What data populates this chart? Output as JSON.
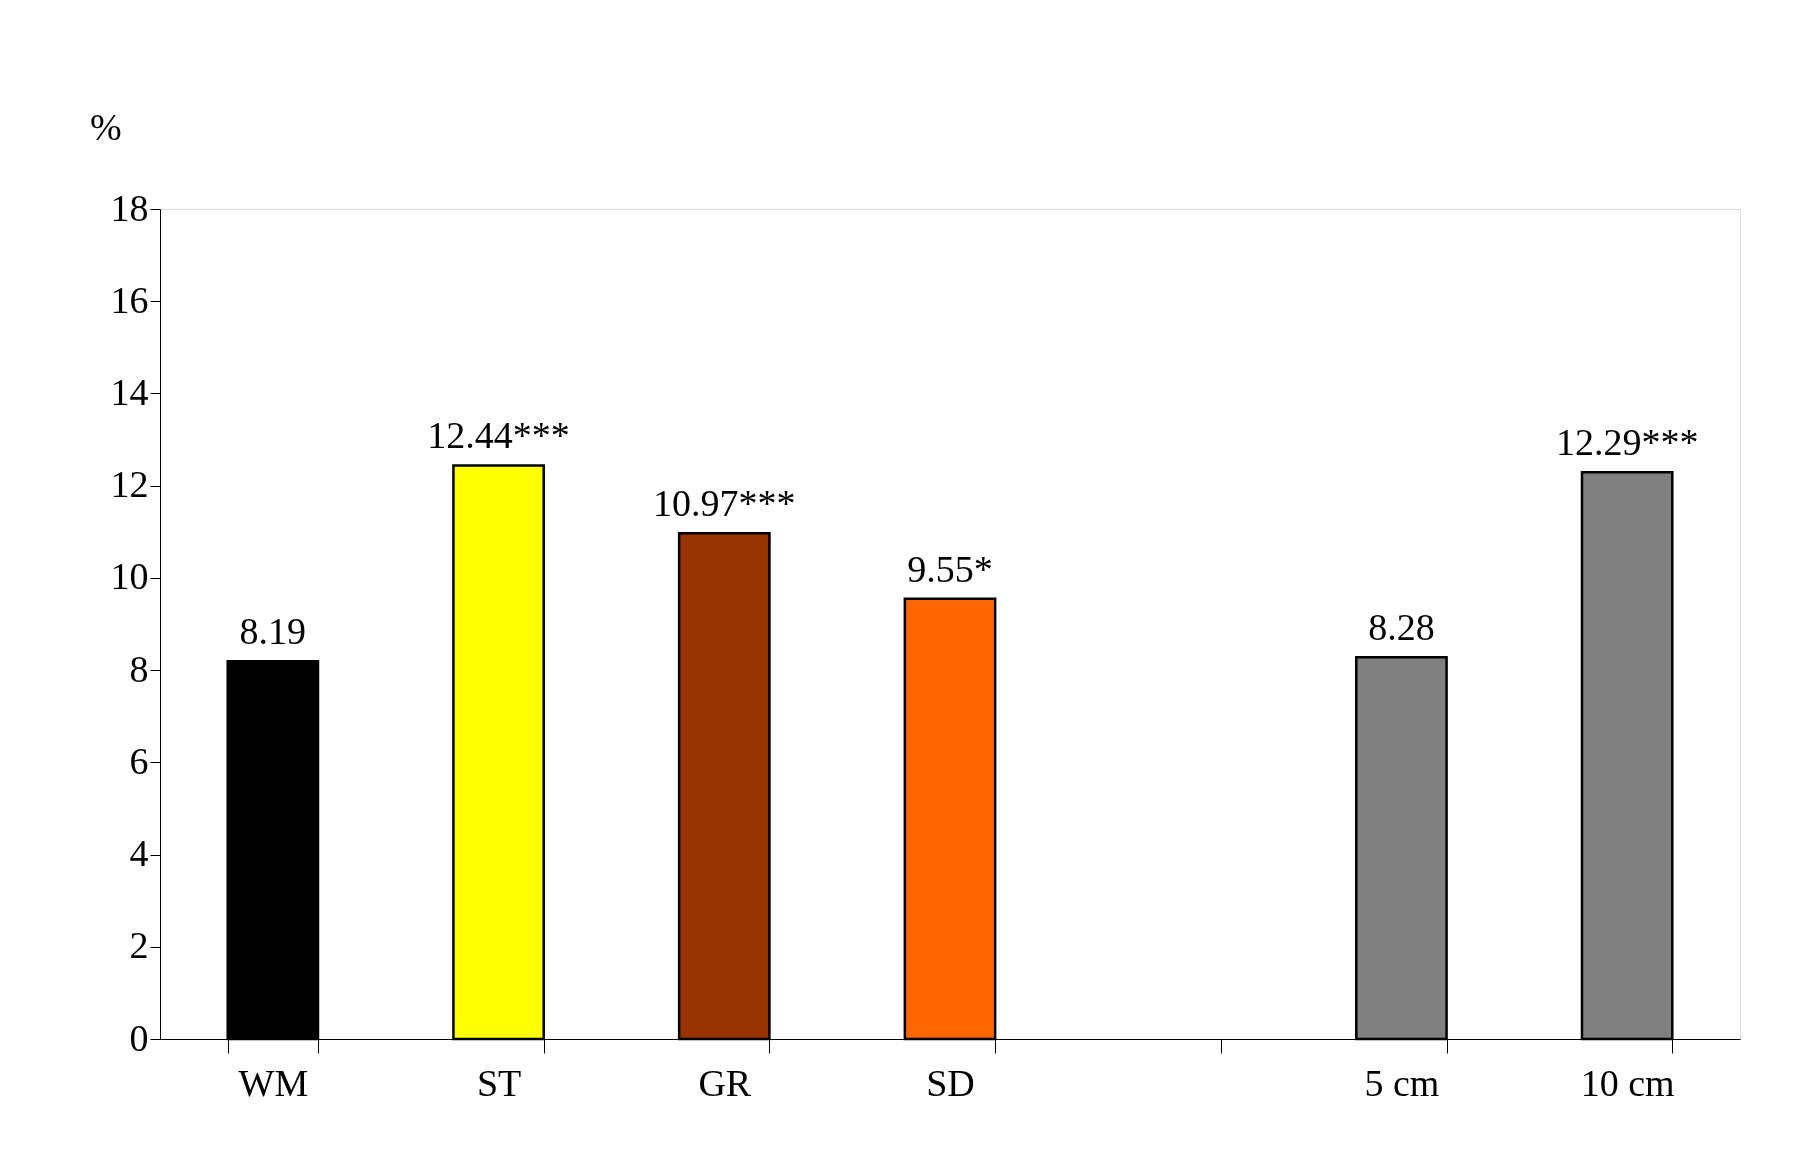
{
  "chart_data": {
    "type": "bar",
    "ylabel": "%",
    "categories": [
      "WM",
      "ST",
      "GR",
      "SD",
      null,
      "5 cm",
      "10 cm"
    ],
    "values": [
      8.19,
      12.44,
      10.97,
      9.55,
      null,
      8.28,
      12.29
    ],
    "colors": [
      "#000000",
      "#ffff00",
      "#993300",
      "#ff6600",
      null,
      "#808080",
      "#808080"
    ],
    "value_labels": [
      "8.19",
      "12.44***",
      "10.97***",
      "9.55*",
      null,
      "8.28",
      "12.29***"
    ],
    "ylim": [
      0,
      18
    ],
    "yticks": [
      0,
      2,
      4,
      6,
      8,
      10,
      12,
      14,
      16,
      18
    ],
    "grid": false
  }
}
